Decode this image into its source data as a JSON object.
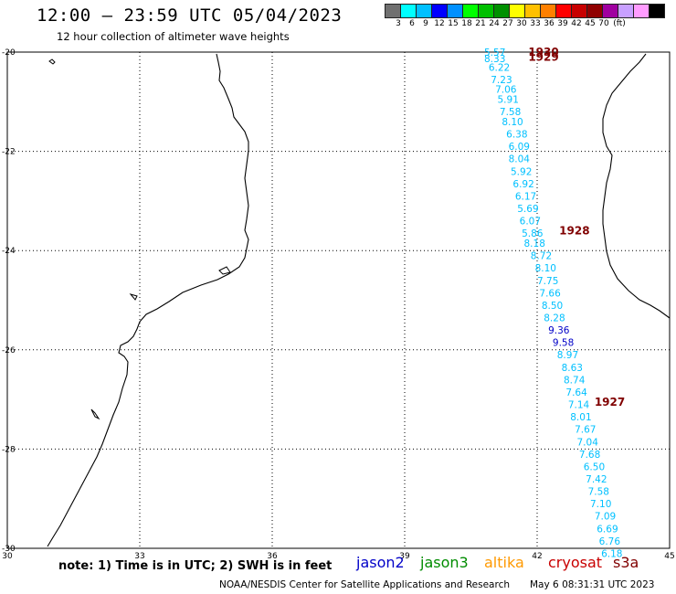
{
  "header": {
    "title": "12:00 – 23:59 UTC 05/04/2023",
    "subtitle": "12 hour collection of altimeter wave heights"
  },
  "colorbar": {
    "colors": [
      "#707070",
      "#00ffff",
      "#00c0ff",
      "#0000ff",
      "#0090ff",
      "#00ff00",
      "#00c000",
      "#009000",
      "#ffff00",
      "#ffc000",
      "#ff8000",
      "#ff0000",
      "#c80000",
      "#900000",
      "#a000a0",
      "#c8a0ff",
      "#ff9cff",
      "#000000"
    ],
    "ticks": [
      "3",
      "6",
      "9",
      "12",
      "15",
      "18",
      "21",
      "24",
      "27",
      "30",
      "33",
      "36",
      "39",
      "42",
      "45",
      "70",
      "(ft)"
    ]
  },
  "map": {
    "lon_range": [
      30,
      45
    ],
    "lat_range": [
      -30,
      -20
    ],
    "lon_ticks": [
      "30",
      "33",
      "36",
      "39",
      "42",
      "45"
    ],
    "lat_ticks": [
      "-20",
      "-22",
      "-24",
      "-26",
      "-28",
      "-30"
    ],
    "grid": "dotted"
  },
  "track": {
    "satellite": "cryosat s3a",
    "passes": [
      {
        "label": "1930",
        "lon": 41.8,
        "lat": -20.0
      },
      {
        "label": "1929",
        "lon": 41.8,
        "lat": -20.1
      },
      {
        "label": "1928",
        "lon": 42.5,
        "lat": -23.6
      },
      {
        "label": "1927",
        "lon": 43.3,
        "lat": -27.05
      }
    ],
    "swh": [
      {
        "v": "5.57",
        "lon": 40.8,
        "lat": -20.0,
        "c": "#00c0ff"
      },
      {
        "v": "8.33",
        "lon": 40.8,
        "lat": -20.13,
        "c": "#00c0ff"
      },
      {
        "v": "6.22",
        "lon": 40.9,
        "lat": -20.3,
        "c": "#00c0ff"
      },
      {
        "v": "7.23",
        "lon": 40.95,
        "lat": -20.55,
        "c": "#00c0ff"
      },
      {
        "v": "7.06",
        "lon": 41.05,
        "lat": -20.75,
        "c": "#00c0ff"
      },
      {
        "v": "5.91",
        "lon": 41.1,
        "lat": -20.95,
        "c": "#00c0ff"
      },
      {
        "v": "7.58",
        "lon": 41.15,
        "lat": -21.2,
        "c": "#00c0ff"
      },
      {
        "v": "8.10",
        "lon": 41.2,
        "lat": -21.4,
        "c": "#00c0ff"
      },
      {
        "v": "6.38",
        "lon": 41.3,
        "lat": -21.65,
        "c": "#00c0ff"
      },
      {
        "v": "6.09",
        "lon": 41.35,
        "lat": -21.9,
        "c": "#00c0ff"
      },
      {
        "v": "8.04",
        "lon": 41.35,
        "lat": -22.15,
        "c": "#00c0ff"
      },
      {
        "v": "5.92",
        "lon": 41.4,
        "lat": -22.4,
        "c": "#00c0ff"
      },
      {
        "v": "6.92",
        "lon": 41.45,
        "lat": -22.65,
        "c": "#00c0ff"
      },
      {
        "v": "6.17",
        "lon": 41.5,
        "lat": -22.9,
        "c": "#00c0ff"
      },
      {
        "v": "5.69",
        "lon": 41.55,
        "lat": -23.15,
        "c": "#00c0ff"
      },
      {
        "v": "6.07",
        "lon": 41.6,
        "lat": -23.4,
        "c": "#00c0ff"
      },
      {
        "v": "5.86",
        "lon": 41.65,
        "lat": -23.65,
        "c": "#00c0ff"
      },
      {
        "v": "8.18",
        "lon": 41.7,
        "lat": -23.85,
        "c": "#00c0ff"
      },
      {
        "v": "8.72",
        "lon": 41.85,
        "lat": -24.1,
        "c": "#00c0ff"
      },
      {
        "v": "8.10",
        "lon": 41.95,
        "lat": -24.35,
        "c": "#00c0ff"
      },
      {
        "v": "7.75",
        "lon": 42.0,
        "lat": -24.6,
        "c": "#00c0ff"
      },
      {
        "v": "7.66",
        "lon": 42.05,
        "lat": -24.85,
        "c": "#00c0ff"
      },
      {
        "v": "8.50",
        "lon": 42.1,
        "lat": -25.1,
        "c": "#00c0ff"
      },
      {
        "v": "8.28",
        "lon": 42.15,
        "lat": -25.35,
        "c": "#00c0ff"
      },
      {
        "v": "9.36",
        "lon": 42.25,
        "lat": -25.6,
        "c": "#0000c8"
      },
      {
        "v": "9.58",
        "lon": 42.35,
        "lat": -25.85,
        "c": "#0000c8"
      },
      {
        "v": "8.97",
        "lon": 42.45,
        "lat": -26.1,
        "c": "#00c0ff"
      },
      {
        "v": "8.63",
        "lon": 42.55,
        "lat": -26.35,
        "c": "#00c0ff"
      },
      {
        "v": "8.74",
        "lon": 42.6,
        "lat": -26.6,
        "c": "#00c0ff"
      },
      {
        "v": "7.64",
        "lon": 42.65,
        "lat": -26.85,
        "c": "#00c0ff"
      },
      {
        "v": "7.14",
        "lon": 42.7,
        "lat": -27.1,
        "c": "#00c0ff"
      },
      {
        "v": "8.01",
        "lon": 42.75,
        "lat": -27.35,
        "c": "#00c0ff"
      },
      {
        "v": "7.67",
        "lon": 42.85,
        "lat": -27.6,
        "c": "#00c0ff"
      },
      {
        "v": "7.04",
        "lon": 42.9,
        "lat": -27.85,
        "c": "#00c0ff"
      },
      {
        "v": "7.68",
        "lon": 42.95,
        "lat": -28.1,
        "c": "#00c0ff"
      },
      {
        "v": "6.50",
        "lon": 43.05,
        "lat": -28.35,
        "c": "#00c0ff"
      },
      {
        "v": "7.42",
        "lon": 43.1,
        "lat": -28.6,
        "c": "#00c0ff"
      },
      {
        "v": "7.58",
        "lon": 43.15,
        "lat": -28.85,
        "c": "#00c0ff"
      },
      {
        "v": "7.10",
        "lon": 43.2,
        "lat": -29.1,
        "c": "#00c0ff"
      },
      {
        "v": "7.09",
        "lon": 43.3,
        "lat": -29.35,
        "c": "#00c0ff"
      },
      {
        "v": "6.69",
        "lon": 43.35,
        "lat": -29.6,
        "c": "#00c0ff"
      },
      {
        "v": "6.76",
        "lon": 43.4,
        "lat": -29.85,
        "c": "#00c0ff"
      },
      {
        "v": "6.18",
        "lon": 43.45,
        "lat": -30.1,
        "c": "#00c0ff"
      }
    ]
  },
  "legend": {
    "note": "note:  1) Time is in UTC;  2) SWH is in feet",
    "satellites": [
      {
        "name": "jason2",
        "color": "#0000c8"
      },
      {
        "name": "jason3",
        "color": "#008c00"
      },
      {
        "name": "altika",
        "color": "#ff9900"
      },
      {
        "name": "cryosat",
        "color": "#c80000"
      },
      {
        "name": "s3a",
        "color": "#800000"
      }
    ]
  },
  "footer": {
    "credit": "NOAA/NESDIS Center for Satellite Applications and Research",
    "timestamp": "May  6 08:31:31 UTC 2023"
  }
}
